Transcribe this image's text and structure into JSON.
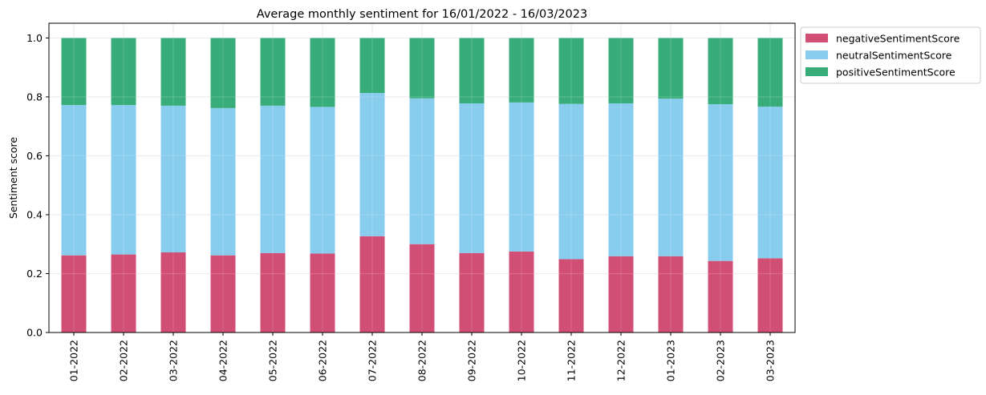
{
  "chart_data": {
    "type": "bar",
    "stacked": true,
    "title": "Average monthly sentiment for 16/01/2022 - 16/03/2023",
    "xlabel": "",
    "ylabel": "Sentiment score",
    "ylim": [
      0,
      1.05
    ],
    "yticks": [
      "0.0",
      "0.2",
      "0.4",
      "0.6",
      "0.8",
      "1.0"
    ],
    "grid": true,
    "legend_position": "outside-top-right",
    "categories": [
      "01-2022",
      "02-2022",
      "03-2022",
      "04-2022",
      "05-2022",
      "06-2022",
      "07-2022",
      "08-2022",
      "09-2022",
      "10-2022",
      "11-2022",
      "12-2022",
      "01-2023",
      "02-2023",
      "03-2023"
    ],
    "series": [
      {
        "name": "negativeSentimentScore",
        "color": "#d14f74",
        "values": [
          0.262,
          0.265,
          0.272,
          0.262,
          0.27,
          0.268,
          0.327,
          0.3,
          0.27,
          0.275,
          0.249,
          0.259,
          0.259,
          0.243,
          0.252
        ]
      },
      {
        "name": "neutralSentimentScore",
        "color": "#89cdee",
        "values": [
          0.51,
          0.507,
          0.498,
          0.5,
          0.5,
          0.498,
          0.486,
          0.495,
          0.508,
          0.506,
          0.527,
          0.519,
          0.535,
          0.532,
          0.515
        ]
      },
      {
        "name": "positiveSentimentScore",
        "color": "#38ad7a",
        "values": [
          0.228,
          0.228,
          0.23,
          0.238,
          0.23,
          0.234,
          0.187,
          0.205,
          0.222,
          0.219,
          0.224,
          0.222,
          0.206,
          0.225,
          0.233
        ]
      }
    ]
  }
}
